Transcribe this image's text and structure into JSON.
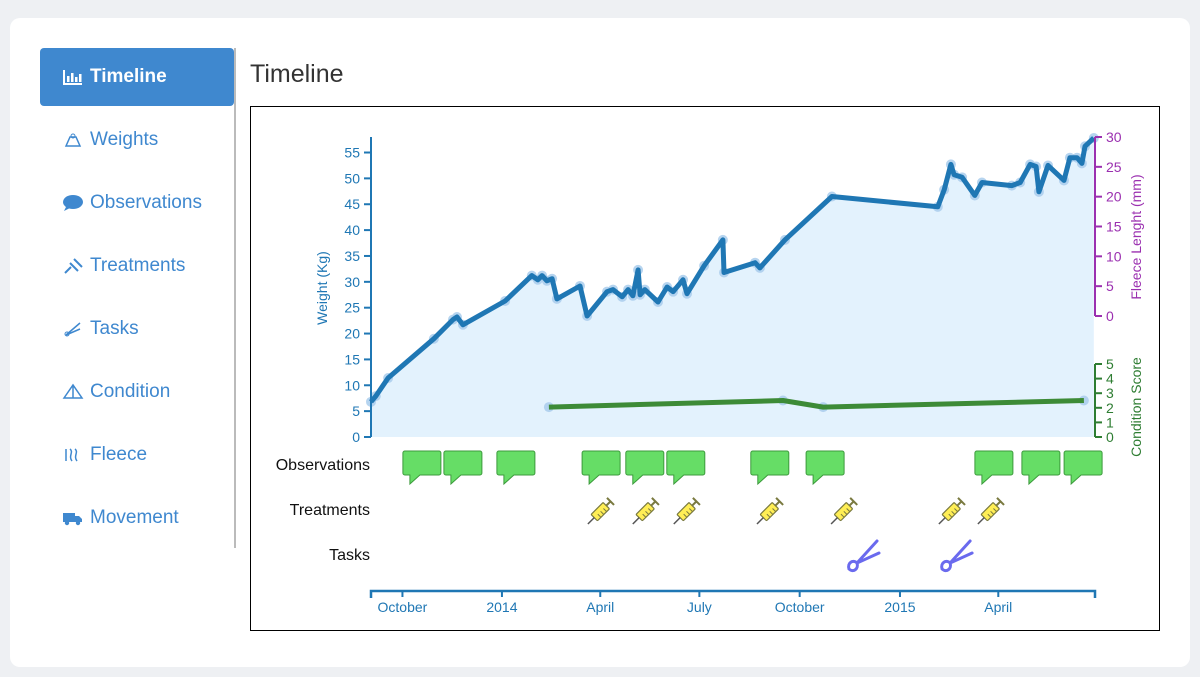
{
  "sidebar": {
    "items": [
      "Timeline",
      "Weights",
      "Observations",
      "Treatments",
      "Tasks",
      "Condition",
      "Fleece",
      "Movement"
    ],
    "active": 0
  },
  "header": {
    "title": "Timeline"
  },
  "chart_data": {
    "type": "line",
    "ylabel": "Weight (Kg)",
    "y2label": "Fleece Lenght (mm)",
    "y3label": "Condition Score",
    "xlim": [
      2013.671,
      2015.49
    ],
    "xticks": [
      {
        "value": 2013.75,
        "label": "October"
      },
      2014,
      {
        "value": 2014.247,
        "label": "April"
      },
      {
        "value": 2014.496,
        "label": "July"
      },
      {
        "value": 2014.748,
        "label": "October"
      },
      2015,
      {
        "value": 2015.247,
        "label": "April"
      }
    ],
    "ylim": [
      0,
      58
    ],
    "yticks": [
      0,
      5,
      10,
      15,
      20,
      25,
      30,
      35,
      40,
      45,
      50,
      55
    ],
    "y_color": "#1f77b4",
    "y2lim": [
      0,
      30
    ],
    "y2ticks": [
      0,
      5,
      10,
      15,
      20,
      25,
      30
    ],
    "y2_color": "#9b30b0",
    "y3lim": [
      0,
      5
    ],
    "y3ticks": [
      0,
      1,
      2,
      3,
      4,
      5
    ],
    "y3_color": "#2e7d32",
    "series": [
      {
        "axis": "y",
        "color": "#1f77b4",
        "fill": "#e3f2fd",
        "x": [
          2013.671,
          2013.683,
          2013.714,
          2013.829,
          2013.877,
          2013.887,
          2013.902,
          2014.008,
          2014.075,
          2014.09,
          2014.101,
          2014.113,
          2014.126,
          2014.138,
          2014.196,
          2014.214,
          2014.264,
          2014.279,
          2014.302,
          2014.317,
          2014.329,
          2014.342,
          2014.347,
          2014.359,
          2014.392,
          2014.415,
          2014.43,
          2014.455,
          2014.465,
          2014.508,
          2014.555,
          2014.558,
          2014.636,
          2014.648,
          2014.711,
          2014.829,
          2015.095,
          2015.111,
          2015.128,
          2015.136,
          2015.156,
          2015.188,
          2015.206,
          2015.281,
          2015.302,
          2015.327,
          2015.342,
          2015.349,
          2015.372,
          2015.412,
          2015.427,
          2015.445,
          2015.457,
          2015.465,
          2015.487
        ],
        "values": [
          6.8,
          7.9,
          11.4,
          19,
          22.7,
          23.2,
          21.7,
          26.3,
          31.2,
          30.4,
          31.2,
          30.2,
          30.6,
          26.7,
          29.2,
          23.4,
          28.1,
          28.5,
          27.1,
          28.5,
          27.3,
          32.3,
          27.5,
          28.5,
          26.1,
          29,
          28.1,
          30.4,
          27.7,
          33.1,
          38.1,
          31.8,
          33.7,
          32.7,
          38.1,
          46.5,
          44.5,
          47.8,
          52.7,
          50.7,
          50.2,
          46.7,
          49.2,
          48.6,
          49.2,
          52.7,
          52.3,
          47.4,
          52.5,
          49.6,
          54,
          54,
          52.9,
          56.2,
          57.8
        ]
      },
      {
        "axis": "y3",
        "color": "#3d8b37",
        "x": [
          2014.118,
          2014.706,
          2014.807,
          2015.462
        ],
        "values": [
          2.05,
          2.5,
          2.05,
          2.5
        ]
      }
    ],
    "events": [
      {
        "label": "Observations",
        "color": "#66dd66",
        "x": [
          2013.799,
          2013.902,
          2014.035,
          2014.249,
          2014.359,
          2014.462,
          2014.673,
          2014.812,
          2015.236,
          2015.354,
          2015.46
        ]
      },
      {
        "label": "Treatments",
        "color": "#ffee55",
        "x": [
          2014.246,
          2014.359,
          2014.462,
          2014.671,
          2014.857,
          2015.128,
          2015.226
        ]
      },
      {
        "label": "Tasks",
        "color": "#6a6aee",
        "x": [
          2014.907,
          2015.141
        ]
      }
    ]
  }
}
